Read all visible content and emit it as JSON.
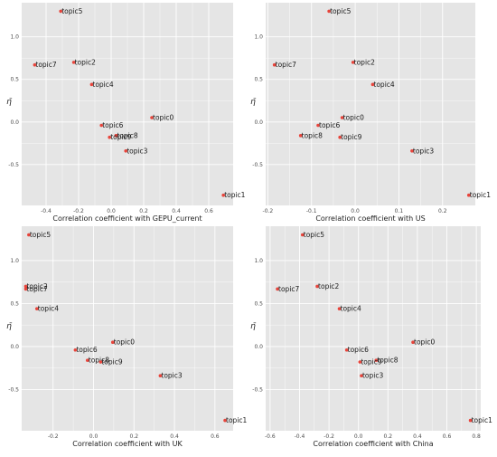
{
  "chart_data": [
    {
      "type": "scatter",
      "xlabel": "Correlation coefficient with GEPU_current",
      "ylabel": "η̄",
      "xlim": [
        -0.55,
        0.75
      ],
      "ylim": [
        -0.98,
        1.4
      ],
      "xticks": [
        -0.4,
        -0.2,
        0.0,
        0.2,
        0.4,
        0.6
      ],
      "xtick_labels": [
        "-0.4",
        "-0.2",
        "0.0",
        "0.2",
        "0.4",
        "0.6"
      ],
      "yticks": [
        1.0,
        0.5,
        0.0,
        -0.5
      ],
      "ytick_labels": [
        "1.0",
        "0.5",
        "0.0",
        "-0.5"
      ],
      "grid": true,
      "points": [
        {
          "label": "topic5",
          "x": -0.31,
          "y": 1.3
        },
        {
          "label": "topic2",
          "x": -0.23,
          "y": 0.7
        },
        {
          "label": "topic7",
          "x": -0.47,
          "y": 0.67
        },
        {
          "label": "topic4",
          "x": -0.12,
          "y": 0.44
        },
        {
          "label": "topic0",
          "x": 0.25,
          "y": 0.05
        },
        {
          "label": "topic6",
          "x": -0.06,
          "y": -0.04
        },
        {
          "label": "topic8",
          "x": 0.03,
          "y": -0.16
        },
        {
          "label": "topic9",
          "x": -0.01,
          "y": -0.18
        },
        {
          "label": "topic3",
          "x": 0.09,
          "y": -0.34
        },
        {
          "label": "topic1",
          "x": 0.69,
          "y": -0.86
        }
      ]
    },
    {
      "type": "scatter",
      "xlabel": "Correlation coefficient with US",
      "ylabel": "η̄",
      "xlim": [
        -0.205,
        0.275
      ],
      "ylim": [
        -0.98,
        1.4
      ],
      "xticks": [
        -0.2,
        -0.1,
        0.0,
        0.1,
        0.2
      ],
      "xtick_labels": [
        "-0.2",
        "-0.1",
        "0.0",
        "0.1",
        "0.2"
      ],
      "yticks": [
        1.0,
        0.5,
        0.0,
        -0.5
      ],
      "ytick_labels": [
        "1.0",
        "0.5",
        "0.0",
        "-0.5"
      ],
      "grid": true,
      "points": [
        {
          "label": "topic5",
          "x": -0.06,
          "y": 1.3
        },
        {
          "label": "topic2",
          "x": -0.005,
          "y": 0.7
        },
        {
          "label": "topic7",
          "x": -0.185,
          "y": 0.67
        },
        {
          "label": "topic4",
          "x": 0.04,
          "y": 0.44
        },
        {
          "label": "topic0",
          "x": -0.03,
          "y": 0.05
        },
        {
          "label": "topic6",
          "x": -0.085,
          "y": -0.04
        },
        {
          "label": "topic8",
          "x": -0.125,
          "y": -0.16
        },
        {
          "label": "topic9",
          "x": -0.035,
          "y": -0.18
        },
        {
          "label": "topic3",
          "x": 0.13,
          "y": -0.34
        },
        {
          "label": "topic1",
          "x": 0.26,
          "y": -0.86
        }
      ]
    },
    {
      "type": "scatter",
      "xlabel": "Correlation coefficient with UK",
      "ylabel": "η̄",
      "xlim": [
        -0.355,
        0.69
      ],
      "ylim": [
        -0.98,
        1.4
      ],
      "xticks": [
        -0.2,
        0.0,
        0.2,
        0.4,
        0.6
      ],
      "xtick_labels": [
        "-0.2",
        "0.0",
        "0.2",
        "0.4",
        "0.6"
      ],
      "yticks": [
        1.0,
        0.5,
        0.0,
        -0.5
      ],
      "ytick_labels": [
        "1.0",
        "0.5",
        "0.0",
        "-0.5"
      ],
      "grid": true,
      "points": [
        {
          "label": "topic5",
          "x": -0.32,
          "y": 1.3
        },
        {
          "label": "topic2",
          "x": -0.335,
          "y": 0.7
        },
        {
          "label": "topic7",
          "x": -0.335,
          "y": 0.67
        },
        {
          "label": "topic4",
          "x": -0.28,
          "y": 0.44
        },
        {
          "label": "topic0",
          "x": 0.095,
          "y": 0.05
        },
        {
          "label": "topic6",
          "x": -0.09,
          "y": -0.04
        },
        {
          "label": "topic8",
          "x": -0.03,
          "y": -0.16
        },
        {
          "label": "topic9",
          "x": 0.035,
          "y": -0.18
        },
        {
          "label": "topic3",
          "x": 0.33,
          "y": -0.34
        },
        {
          "label": "topic1",
          "x": 0.65,
          "y": -0.86
        }
      ]
    },
    {
      "type": "scatter",
      "xlabel": "Correlation coefficient with China",
      "ylabel": "η̄",
      "xlim": [
        -0.63,
        0.83
      ],
      "ylim": [
        -0.98,
        1.4
      ],
      "xticks": [
        -0.6,
        -0.4,
        -0.2,
        0.0,
        0.2,
        0.4,
        0.6,
        0.8
      ],
      "xtick_labels": [
        "-0.6",
        "-0.4",
        "-0.2",
        "0.0",
        "0.2",
        "0.4",
        "0.6",
        "0.8"
      ],
      "yticks": [
        1.0,
        0.5,
        0.0,
        -0.5
      ],
      "ytick_labels": [
        "1.0",
        "0.5",
        "0.0",
        "-0.5"
      ],
      "grid": true,
      "points": [
        {
          "label": "topic5",
          "x": -0.38,
          "y": 1.3
        },
        {
          "label": "topic2",
          "x": -0.28,
          "y": 0.7
        },
        {
          "label": "topic7",
          "x": -0.55,
          "y": 0.67
        },
        {
          "label": "topic4",
          "x": -0.13,
          "y": 0.44
        },
        {
          "label": "topic0",
          "x": 0.37,
          "y": 0.05
        },
        {
          "label": "topic6",
          "x": -0.08,
          "y": -0.04
        },
        {
          "label": "topic8",
          "x": 0.12,
          "y": -0.16
        },
        {
          "label": "topic9",
          "x": 0.01,
          "y": -0.18
        },
        {
          "label": "topic3",
          "x": 0.02,
          "y": -0.34
        },
        {
          "label": "topic1",
          "x": 0.76,
          "y": -0.86
        }
      ]
    }
  ],
  "colors": {
    "panel_bg": "#e5e5e5",
    "grid": "#ffffff",
    "point": "#e8453c"
  }
}
